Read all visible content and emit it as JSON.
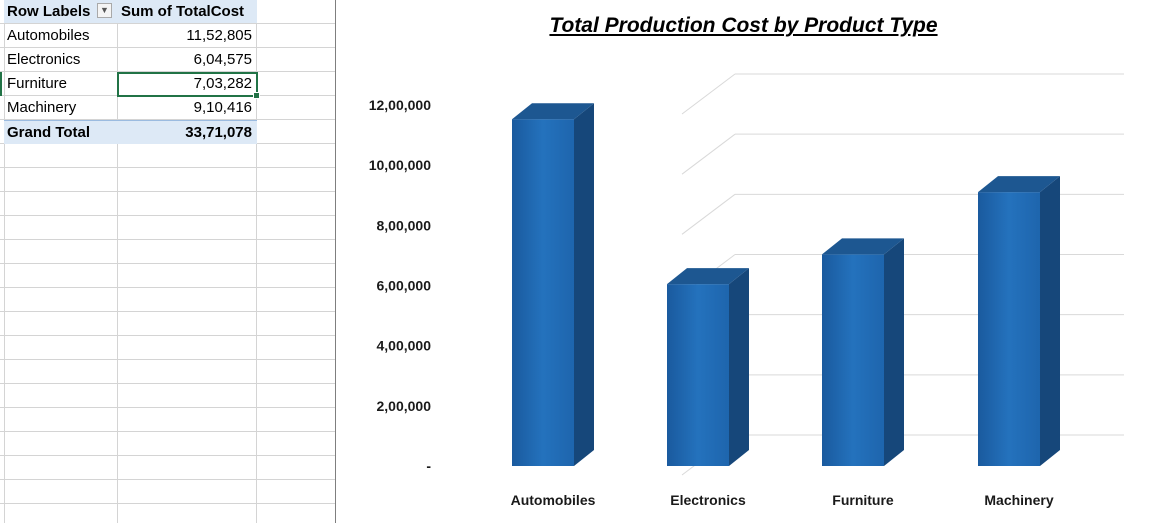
{
  "pivot_table": {
    "header": {
      "row_labels": "Row Labels",
      "value_field": "Sum of TotalCost"
    },
    "rows": [
      {
        "label": "Automobiles",
        "value": "11,52,805"
      },
      {
        "label": "Electronics",
        "value": "6,04,575"
      },
      {
        "label": "Furniture",
        "value": "7,03,282"
      },
      {
        "label": "Machinery",
        "value": "9,10,416"
      }
    ],
    "grand_total": {
      "label": "Grand Total",
      "value": "33,71,078"
    },
    "filter_icon": "dropdown-arrow-icon"
  },
  "chart_data": {
    "type": "bar",
    "style": "3d-column",
    "title": "Total Production Cost by Product Type",
    "categories": [
      "Automobiles",
      "Electronics",
      "Furniture",
      "Machinery"
    ],
    "values": [
      1152805,
      604575,
      703282,
      910416
    ],
    "xlabel": "",
    "ylabel": "",
    "ylim": [
      0,
      1200000
    ],
    "y_ticks": [
      0,
      200000,
      400000,
      600000,
      800000,
      1000000,
      1200000
    ],
    "y_tick_labels": [
      "-",
      "2,00,000",
      "4,00,000",
      "6,00,000",
      "8,00,000",
      "10,00,000",
      "12,00,000"
    ],
    "grid": true,
    "legend": "none",
    "bar_color": "#1f63a8"
  }
}
